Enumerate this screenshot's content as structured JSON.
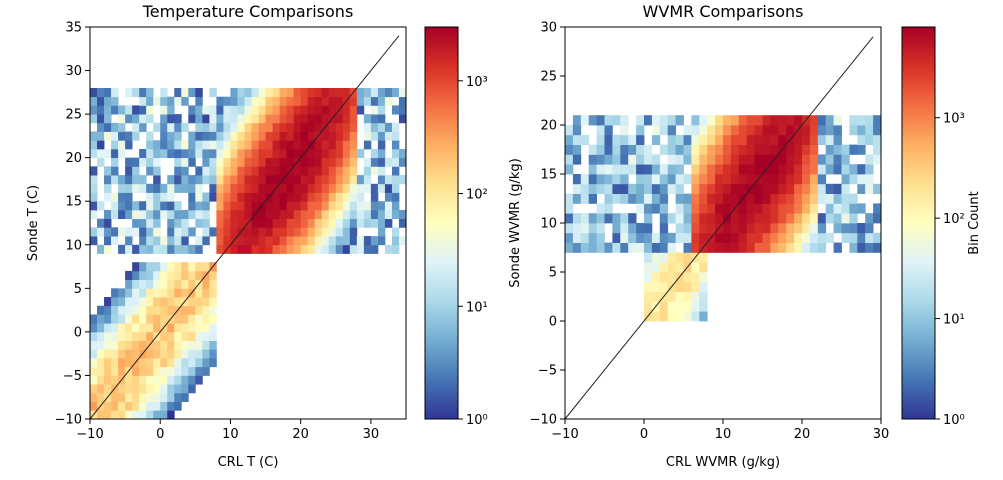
{
  "chart_data": [
    {
      "type": "heatmap",
      "title": "Temperature Comparisons",
      "xlabel": "CRL T (C)",
      "ylabel": "Sonde T (C)",
      "xlim": [
        -10,
        35
      ],
      "ylim": [
        -10,
        35
      ],
      "xticks": [
        -10,
        0,
        10,
        20,
        30
      ],
      "xtick_labels": [
        "−10",
        "0",
        "10",
        "20",
        "30"
      ],
      "yticks": [
        -10,
        -5,
        0,
        5,
        10,
        15,
        20,
        25,
        30,
        35
      ],
      "ytick_labels": [
        "−10",
        "−5",
        "0",
        "5",
        "10",
        "15",
        "20",
        "25",
        "30",
        "35"
      ],
      "one_to_one_line": {
        "from": [
          -10,
          -10
        ],
        "to": [
          34,
          34
        ]
      },
      "bin_size": 1,
      "colormap": "RdYlBu_r",
      "color_scale": "log",
      "colorbar": {
        "range": [
          1,
          3000
        ],
        "ticks": [
          1,
          10,
          100,
          1000
        ],
        "tick_labels": [
          "10⁰",
          "10¹",
          "10²",
          "10³"
        ],
        "label": ""
      },
      "density_model": {
        "core": {
          "x_range": [
            8,
            28
          ],
          "y_range": [
            9,
            28
          ],
          "peak": 3000,
          "spread": 3.2
        },
        "lower_tail": {
          "x_range": [
            -10,
            8
          ],
          "y_range": [
            -10,
            8
          ],
          "peak": 200,
          "spread": 2.5
        },
        "scatter_region": {
          "x_range": [
            -10,
            35
          ],
          "y_range": [
            9,
            28
          ],
          "typical": 6
        }
      }
    },
    {
      "type": "heatmap",
      "title": "WVMR Comparisons",
      "xlabel": "CRL WVMR (g/kg)",
      "ylabel": "Sonde WVMR (g/kg)",
      "xlim": [
        -10,
        30
      ],
      "ylim": [
        -10,
        30
      ],
      "xticks": [
        -10,
        0,
        10,
        20,
        30
      ],
      "xtick_labels": [
        "−10",
        "0",
        "10",
        "20",
        "30"
      ],
      "yticks": [
        -10,
        -5,
        0,
        5,
        10,
        15,
        20,
        25,
        30
      ],
      "ytick_labels": [
        "−10",
        "−5",
        "0",
        "5",
        "10",
        "15",
        "20",
        "25",
        "30"
      ],
      "one_to_one_line": {
        "from": [
          -10,
          -10
        ],
        "to": [
          29,
          29
        ]
      },
      "bin_size": 1,
      "colormap": "RdYlBu_r",
      "color_scale": "log",
      "colorbar": {
        "range": [
          1,
          8000
        ],
        "ticks": [
          1,
          10,
          100,
          1000
        ],
        "tick_labels": [
          "10⁰",
          "10¹",
          "10²",
          "10³"
        ],
        "label": "Bin Count"
      },
      "density_model": {
        "core": {
          "x_range": [
            6,
            22
          ],
          "y_range": [
            7,
            21
          ],
          "peak": 8000,
          "spread": 3.0
        },
        "lower_tail": {
          "x_range": [
            0,
            8
          ],
          "y_range": [
            0,
            7
          ],
          "peak": 200,
          "spread": 2.0
        },
        "scatter_region": {
          "x_range": [
            -10,
            30
          ],
          "y_range": [
            7,
            21
          ],
          "typical": 8
        }
      }
    }
  ]
}
